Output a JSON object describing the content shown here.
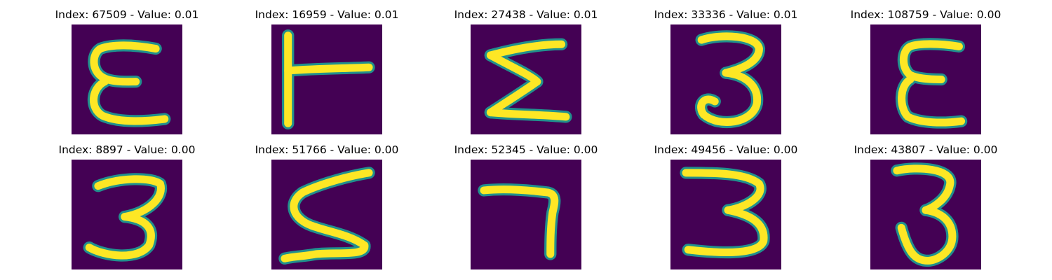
{
  "colors": {
    "background": "#440154",
    "stroke_edge": "#21908d",
    "stroke_core": "#fde725"
  },
  "panels": [
    {
      "title": "Index: 67509 - Value: 0.01",
      "image": "handwritten-glyph-e",
      "icon": "glyph-epsilon-icon"
    },
    {
      "title": "Index: 16959 - Value: 0.01",
      "image": "handwritten-glyph-t-rotated",
      "icon": "glyph-t-rotated-icon"
    },
    {
      "title": "Index: 27438 - Value: 0.01",
      "image": "handwritten-glyph-sigma",
      "icon": "glyph-sigma-icon"
    },
    {
      "title": "Index: 33336 - Value: 0.01",
      "image": "handwritten-digit-3",
      "icon": "digit-3-icon"
    },
    {
      "title": "Index: 108759 - Value: 0.00",
      "image": "handwritten-glyph-e",
      "icon": "glyph-epsilon-icon"
    },
    {
      "title": "Index: 8897 - Value: 0.00",
      "image": "handwritten-digit-3",
      "icon": "digit-3-icon"
    },
    {
      "title": "Index: 51766 - Value: 0.00",
      "image": "handwritten-digit-5",
      "icon": "digit-5-icon"
    },
    {
      "title": "Index: 52345 - Value: 0.00",
      "image": "handwritten-digit-7",
      "icon": "digit-7-icon"
    },
    {
      "title": "Index: 49456 - Value: 0.00",
      "image": "handwritten-digit-3",
      "icon": "digit-3-icon"
    },
    {
      "title": "Index: 43807 - Value: 0.00",
      "image": "handwritten-digit-3",
      "icon": "digit-3-icon"
    }
  ]
}
